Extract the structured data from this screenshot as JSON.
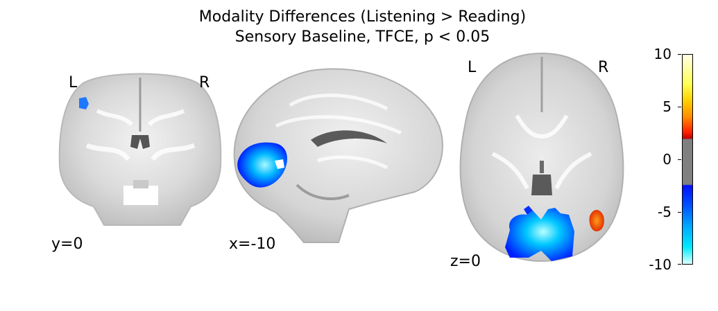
{
  "title": {
    "line1": "Modality Differences (Listening > Reading)",
    "line2": "Sensory Baseline, TFCE, p < 0.05"
  },
  "coronal": {
    "left_marker": "L",
    "right_marker": "R",
    "coord_label": "y=0"
  },
  "sagittal": {
    "coord_label": "x=-10"
  },
  "axial": {
    "left_marker": "L",
    "right_marker": "R",
    "coord_label": "z=0"
  },
  "colorbar": {
    "ticks": [
      "10",
      "5",
      "0",
      "-5",
      "-10"
    ],
    "max": 10,
    "min": -10,
    "threshold_abs": 2.3,
    "colors": {
      "positive_high": "#ffffe8",
      "positive_mid": "#ff8a00",
      "positive_low": "#c00000",
      "neutral": "#808080",
      "negative_low": "#0010ff",
      "negative_high": "#dfffff"
    }
  }
}
